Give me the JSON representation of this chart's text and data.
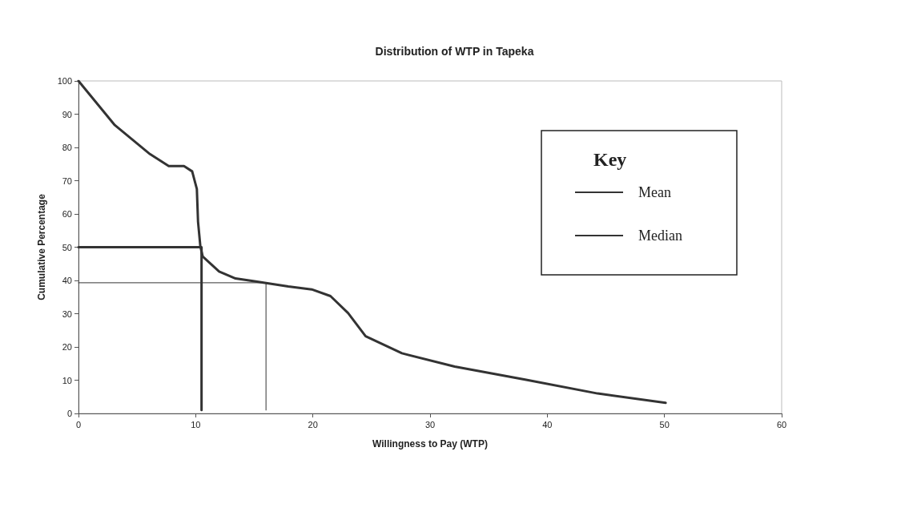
{
  "chart_data": {
    "type": "line",
    "title": "Distribution of WTP in Tapeka",
    "xlabel": "Willingness to Pay (WTP)",
    "ylabel": "Cumulative Percentage",
    "legend_title": "Key",
    "legend": "top right",
    "grid": false,
    "marker": "none",
    "xlim": [
      0,
      60
    ],
    "xticks": [
      0,
      10,
      20,
      30,
      40,
      50,
      60
    ],
    "ylim": [
      0,
      100
    ],
    "yticks": [
      0,
      10,
      20,
      30,
      40,
      50,
      60,
      70,
      80,
      90,
      100
    ],
    "series": [
      {
        "color": "#333333",
        "x": [
          0,
          3.1,
          6.1,
          7.7,
          9,
          9.7,
          10.1,
          10.2,
          10.4,
          10.6,
          12,
          13.4,
          14.9,
          15.9,
          17.9,
          19.9,
          21.5,
          23,
          24.5,
          27.6,
          32.1,
          38.2,
          44.3,
          50.1
        ],
        "values": [
          100,
          86.7,
          78,
          74.4,
          74.4,
          72.8,
          67.5,
          57.7,
          50.2,
          47.2,
          42.7,
          40.6,
          39.8,
          39.3,
          38.2,
          37.3,
          35.3,
          30.2,
          23.2,
          18.1,
          14.1,
          10.1,
          6,
          3.2
        ]
      },
      {
        "name": "Mean",
        "color": "#333333",
        "x": [
          0,
          16,
          16
        ],
        "values": [
          39.3,
          39.3,
          1
        ]
      },
      {
        "name": "Median",
        "color": "#333333",
        "x": [
          0,
          10.5,
          10.5
        ],
        "values": [
          50,
          50,
          1
        ]
      }
    ]
  }
}
